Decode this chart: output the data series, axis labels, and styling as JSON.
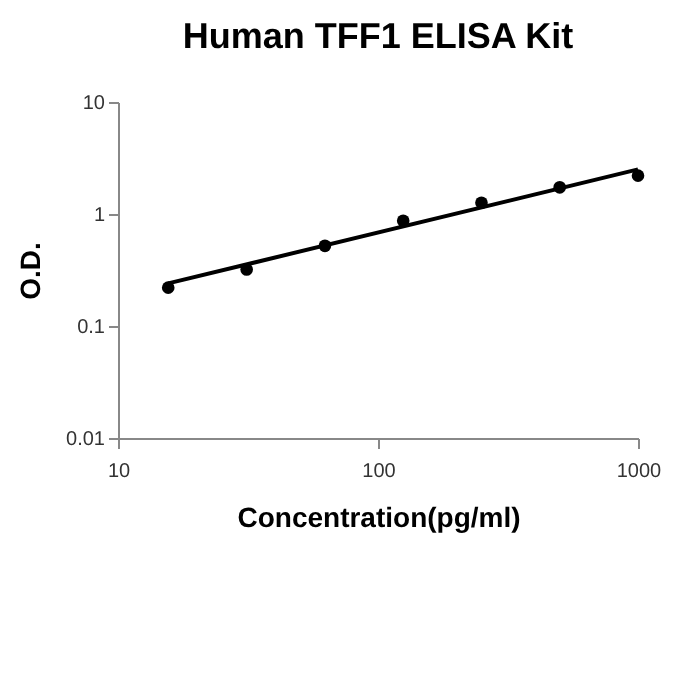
{
  "chart_data": {
    "type": "scatter",
    "title": "Human TFF1 ELISA Kit",
    "xlabel": "Concentration(pg/ml)",
    "ylabel": "O.D.",
    "log": "xy",
    "grid": false,
    "marker": "circle",
    "xlim": [
      10,
      1000
    ],
    "xticks": [
      10,
      100,
      1000
    ],
    "ylim": [
      0.01,
      10
    ],
    "yticks": [
      0.01,
      0.1,
      1,
      10
    ],
    "series": [
      {
        "color": "#000000",
        "x": [
          15.6,
          31.25,
          62.5,
          125,
          250,
          500,
          1000
        ],
        "values": [
          0.22,
          0.32,
          0.52,
          0.87,
          1.26,
          1.73,
          2.2
        ]
      },
      {
        "type": "line",
        "marker": "none",
        "color": "#000000",
        "x": [
          15.6,
          1000
        ],
        "values": [
          0.24,
          2.5
        ]
      }
    ]
  }
}
